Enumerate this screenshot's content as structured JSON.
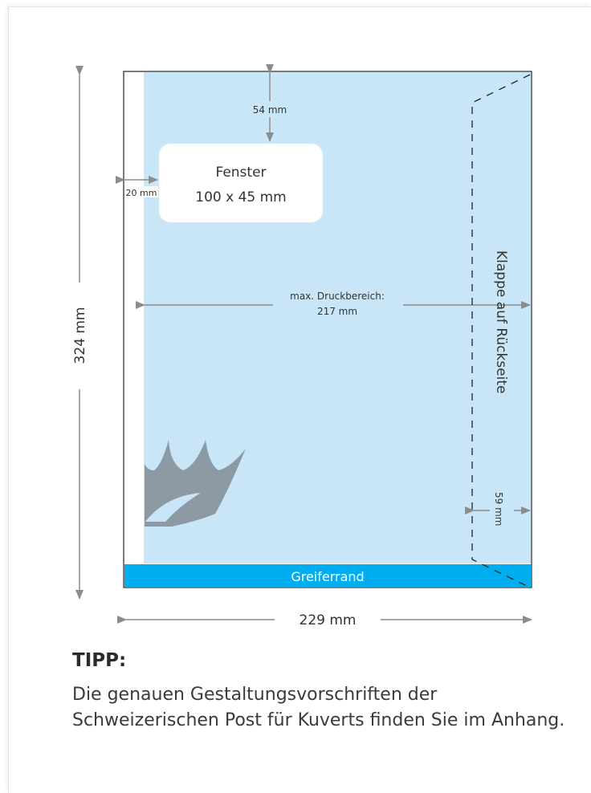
{
  "diagram": {
    "window_label_line1": "Fenster",
    "window_label_line2": "100 x 45 mm",
    "top_margin_label": "54 mm",
    "left_margin_label": "20 mm",
    "print_area_label_line1": "max. Druckbereich:",
    "print_area_label_line2": "217 mm",
    "flap_label": "Klappe auf Rückseite",
    "flap_width_label": "59 mm",
    "height_label": "324 mm",
    "width_label": "229 mm",
    "gripper_label": "Greiferrand",
    "colors": {
      "print_area": "#c8e6f7",
      "gripper": "#00aeef",
      "arrows": "#8c8c8c",
      "logo": "#8e9aa3"
    }
  },
  "tip": {
    "heading": "TIPP:",
    "text": "Die genauen Gestaltungsvorschriften der Schweizerischen Post für Kuverts finden Sie im Anhang."
  }
}
